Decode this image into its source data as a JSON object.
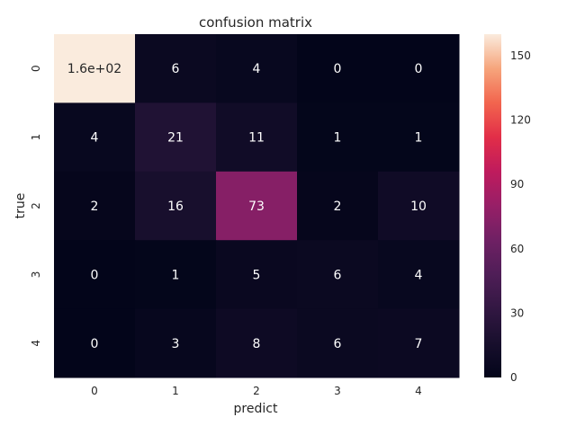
{
  "chart_data": {
    "type": "heatmap",
    "title": "confusion matrix",
    "xlabel": "predict",
    "ylabel": "true",
    "x_categories": [
      "0",
      "1",
      "2",
      "3",
      "4"
    ],
    "y_categories": [
      "0",
      "1",
      "2",
      "3",
      "4"
    ],
    "values": [
      [
        160,
        6,
        4,
        0,
        0
      ],
      [
        4,
        21,
        11,
        1,
        1
      ],
      [
        2,
        16,
        73,
        2,
        10
      ],
      [
        0,
        1,
        5,
        6,
        4
      ],
      [
        0,
        3,
        8,
        6,
        7
      ]
    ],
    "annotations": [
      [
        "1.6e+02",
        "6",
        "4",
        "0",
        "0"
      ],
      [
        "4",
        "21",
        "11",
        "1",
        "1"
      ],
      [
        "2",
        "16",
        "73",
        "2",
        "10"
      ],
      [
        "0",
        "1",
        "5",
        "6",
        "4"
      ],
      [
        "0",
        "3",
        "8",
        "6",
        "7"
      ]
    ],
    "colorscale": "rocket",
    "colorbar": {
      "range": [
        0,
        160
      ],
      "ticks": [
        0,
        30,
        60,
        90,
        120,
        150
      ]
    }
  }
}
